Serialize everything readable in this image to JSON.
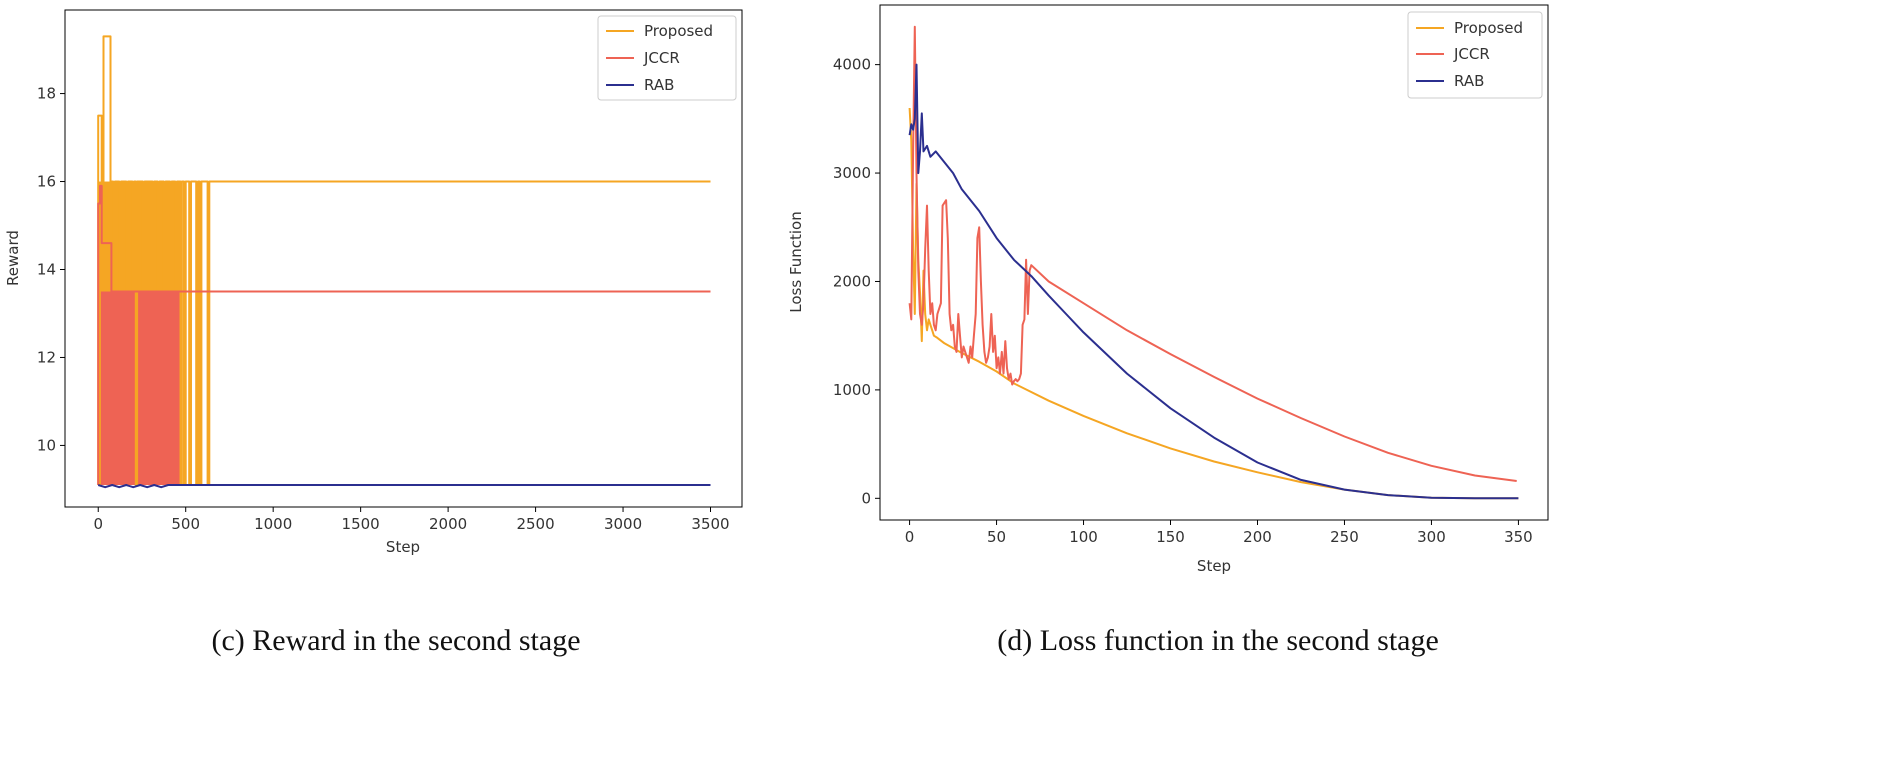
{
  "colors": {
    "proposed": "#f5a623",
    "jccr": "#ee6354",
    "rab": "#2b2f8f"
  },
  "chart_data": [
    {
      "type": "line",
      "xlabel": "Step",
      "ylabel": "Reward",
      "caption": "(c) Reward in the second stage",
      "xlim": [
        -190,
        3680
      ],
      "ylim": [
        8.6,
        19.9
      ],
      "xticks": [
        0,
        500,
        1000,
        1500,
        2000,
        2500,
        3000,
        3500
      ],
      "xtick_labels": [
        "0",
        "500",
        "1000",
        "1500",
        "2000",
        "2500",
        "3000",
        "3500"
      ],
      "yticks": [
        10,
        12,
        14,
        16,
        18
      ],
      "ytick_labels": [
        "10",
        "12",
        "14",
        "16",
        "18"
      ],
      "legend": [
        "Proposed",
        "JCCR",
        "RAB"
      ],
      "legend_position": "top-right",
      "series": [
        {
          "name": "Proposed",
          "color_key": "proposed",
          "points": [
            [
              0,
              9.1
            ],
            [
              0,
              17.5
            ],
            [
              20,
              17.5
            ],
            [
              20,
              15.9
            ],
            [
              30,
              15.9
            ],
            [
              30,
              19.3
            ],
            [
              70,
              19.3
            ],
            [
              70,
              16.0
            ],
            [
              85,
              16.0
            ],
            [
              85,
              13.5
            ],
            [
              95,
              13.5
            ],
            [
              95,
              16.0
            ],
            [
              120,
              16.0
            ],
            [
              120,
              13.5
            ],
            [
              130,
              13.5
            ],
            [
              130,
              16.0
            ],
            [
              160,
              16.0
            ],
            [
              160,
              13.5
            ],
            [
              170,
              13.5
            ],
            [
              170,
              16.0
            ],
            [
              195,
              16.0
            ],
            [
              195,
              13.5
            ],
            [
              205,
              13.5
            ],
            [
              205,
              16.0
            ],
            [
              215,
              16.0
            ],
            [
              215,
              9.1
            ],
            [
              222,
              9.1
            ],
            [
              222,
              16.0
            ],
            [
              255,
              16.0
            ],
            [
              255,
              13.5
            ],
            [
              265,
              13.5
            ],
            [
              265,
              16.0
            ],
            [
              310,
              16.0
            ],
            [
              310,
              13.5
            ],
            [
              320,
              13.5
            ],
            [
              320,
              16.0
            ],
            [
              340,
              16.0
            ],
            [
              340,
              13.5
            ],
            [
              350,
              13.5
            ],
            [
              350,
              16.0
            ],
            [
              375,
              16.0
            ],
            [
              375,
              13.5
            ],
            [
              385,
              13.5
            ],
            [
              385,
              16.0
            ],
            [
              410,
              16.0
            ],
            [
              410,
              13.5
            ],
            [
              420,
              13.5
            ],
            [
              420,
              16.0
            ],
            [
              440,
              16.0
            ],
            [
              440,
              13.5
            ],
            [
              450,
              13.5
            ],
            [
              450,
              16.0
            ],
            [
              470,
              16.0
            ],
            [
              470,
              9.1
            ],
            [
              478,
              9.1
            ],
            [
              478,
              16.0
            ],
            [
              490,
              16.0
            ],
            [
              490,
              9.1
            ],
            [
              500,
              9.1
            ],
            [
              500,
              16.0
            ],
            [
              520,
              16.0
            ],
            [
              520,
              9.1
            ],
            [
              530,
              9.1
            ],
            [
              530,
              16.0
            ],
            [
              560,
              16.0
            ],
            [
              560,
              9.1
            ],
            [
              570,
              9.1
            ],
            [
              570,
              16.0
            ],
            [
              580,
              16.0
            ],
            [
              580,
              9.1
            ],
            [
              590,
              9.1
            ],
            [
              590,
              16.0
            ],
            [
              625,
              16.0
            ],
            [
              625,
              9.1
            ],
            [
              635,
              9.1
            ],
            [
              635,
              16.0
            ],
            [
              3500,
              16.0
            ]
          ]
        },
        {
          "name": "JCCR",
          "color_key": "jccr",
          "points": [
            [
              0,
              9.1
            ],
            [
              0,
              15.5
            ],
            [
              10,
              15.5
            ],
            [
              10,
              15.9
            ],
            [
              20,
              15.9
            ],
            [
              20,
              14.6
            ],
            [
              75,
              14.6
            ],
            [
              75,
              13.5
            ],
            [
              480,
              13.5
            ],
            [
              3500,
              13.5
            ]
          ]
        },
        {
          "name": "RAB",
          "color_key": "rab",
          "points": [
            [
              0,
              9.1
            ],
            [
              40,
              9.05
            ],
            [
              80,
              9.1
            ],
            [
              120,
              9.05
            ],
            [
              160,
              9.1
            ],
            [
              200,
              9.05
            ],
            [
              240,
              9.1
            ],
            [
              280,
              9.05
            ],
            [
              320,
              9.1
            ],
            [
              360,
              9.05
            ],
            [
              400,
              9.1
            ],
            [
              440,
              9.1
            ],
            [
              3500,
              9.1
            ]
          ]
        }
      ],
      "fills": [
        {
          "name": "Proposed",
          "color_key": "proposed",
          "x": [
            0,
            480
          ],
          "y": [
            9.1,
            16.0
          ]
        },
        {
          "name": "JCCR",
          "color_key": "jccr",
          "x": [
            15,
            470
          ],
          "y": [
            9.1,
            13.5
          ]
        }
      ]
    },
    {
      "type": "line",
      "xlabel": "Step",
      "ylabel": "Loss Function",
      "caption": "(d) Loss function in the second stage",
      "xlim": [
        -17,
        367
      ],
      "ylim": [
        -200,
        4550
      ],
      "xticks": [
        0,
        50,
        100,
        150,
        200,
        250,
        300,
        350
      ],
      "xtick_labels": [
        "0",
        "50",
        "100",
        "150",
        "200",
        "250",
        "300",
        "350"
      ],
      "yticks": [
        0,
        1000,
        2000,
        3000,
        4000
      ],
      "ytick_labels": [
        "0",
        "1000",
        "2000",
        "3000",
        "4000"
      ],
      "legend": [
        "Proposed",
        "JCCR",
        "RAB"
      ],
      "legend_position": "top-right",
      "series": [
        {
          "name": "Proposed",
          "color_key": "proposed",
          "points": [
            [
              0,
              3600
            ],
            [
              1,
              3300
            ],
            [
              2,
              2300
            ],
            [
              3,
              1700
            ],
            [
              4,
              2900
            ],
            [
              5,
              2200
            ],
            [
              6,
              1900
            ],
            [
              7,
              1450
            ],
            [
              8,
              2100
            ],
            [
              9,
              1700
            ],
            [
              10,
              1550
            ],
            [
              11,
              1650
            ],
            [
              12,
              1600
            ],
            [
              13,
              1550
            ],
            [
              14,
              1500
            ],
            [
              16,
              1480
            ],
            [
              20,
              1430
            ],
            [
              30,
              1340
            ],
            [
              40,
              1260
            ],
            [
              50,
              1170
            ],
            [
              60,
              1060
            ],
            [
              80,
              900
            ],
            [
              100,
              760
            ],
            [
              125,
              600
            ],
            [
              150,
              460
            ],
            [
              175,
              340
            ],
            [
              200,
              240
            ],
            [
              225,
              150
            ],
            [
              250,
              80
            ],
            [
              275,
              30
            ],
            [
              300,
              5
            ],
            [
              325,
              0
            ],
            [
              350,
              0
            ]
          ]
        },
        {
          "name": "JCCR",
          "color_key": "jccr",
          "points": [
            [
              0,
              1800
            ],
            [
              1,
              1650
            ],
            [
              2,
              3200
            ],
            [
              3,
              4350
            ],
            [
              4,
              3000
            ],
            [
              5,
              2100
            ],
            [
              6,
              1700
            ],
            [
              7,
              1600
            ],
            [
              8,
              1800
            ],
            [
              9,
              2300
            ],
            [
              10,
              2700
            ],
            [
              11,
              2100
            ],
            [
              12,
              1700
            ],
            [
              13,
              1800
            ],
            [
              14,
              1600
            ],
            [
              15,
              1550
            ],
            [
              16,
              1700
            ],
            [
              18,
              1800
            ],
            [
              19,
              2700
            ],
            [
              21,
              2750
            ],
            [
              22,
              2400
            ],
            [
              23,
              1700
            ],
            [
              24,
              1550
            ],
            [
              25,
              1600
            ],
            [
              26,
              1400
            ],
            [
              27,
              1350
            ],
            [
              28,
              1700
            ],
            [
              29,
              1500
            ],
            [
              30,
              1300
            ],
            [
              31,
              1400
            ],
            [
              32,
              1350
            ],
            [
              34,
              1250
            ],
            [
              35,
              1400
            ],
            [
              36,
              1300
            ],
            [
              37,
              1500
            ],
            [
              38,
              1700
            ],
            [
              39,
              2400
            ],
            [
              40,
              2500
            ],
            [
              41,
              2000
            ],
            [
              42,
              1600
            ],
            [
              43,
              1350
            ],
            [
              44,
              1250
            ],
            [
              45,
              1300
            ],
            [
              46,
              1400
            ],
            [
              47,
              1700
            ],
            [
              48,
              1350
            ],
            [
              49,
              1500
            ],
            [
              50,
              1200
            ],
            [
              51,
              1300
            ],
            [
              52,
              1150
            ],
            [
              53,
              1350
            ],
            [
              54,
              1150
            ],
            [
              55,
              1450
            ],
            [
              56,
              1200
            ],
            [
              57,
              1100
            ],
            [
              58,
              1150
            ],
            [
              59,
              1050
            ],
            [
              60,
              1080
            ],
            [
              61,
              1100
            ],
            [
              62,
              1080
            ],
            [
              63,
              1100
            ],
            [
              64,
              1150
            ],
            [
              65,
              1600
            ],
            [
              66,
              1650
            ],
            [
              67,
              2200
            ],
            [
              68,
              1700
            ],
            [
              69,
              2100
            ],
            [
              70,
              2150
            ],
            [
              80,
              2000
            ],
            [
              100,
              1800
            ],
            [
              125,
              1550
            ],
            [
              150,
              1330
            ],
            [
              175,
              1120
            ],
            [
              200,
              920
            ],
            [
              225,
              740
            ],
            [
              250,
              570
            ],
            [
              275,
              420
            ],
            [
              300,
              300
            ],
            [
              325,
              210
            ],
            [
              349,
              160
            ]
          ]
        },
        {
          "name": "RAB",
          "color_key": "rab",
          "points": [
            [
              0,
              3350
            ],
            [
              1,
              3450
            ],
            [
              2,
              3400
            ],
            [
              3,
              3500
            ],
            [
              4,
              4000
            ],
            [
              5,
              3000
            ],
            [
              6,
              3200
            ],
            [
              7,
              3550
            ],
            [
              8,
              3200
            ],
            [
              10,
              3250
            ],
            [
              12,
              3150
            ],
            [
              15,
              3200
            ],
            [
              20,
              3100
            ],
            [
              25,
              3000
            ],
            [
              30,
              2850
            ],
            [
              40,
              2650
            ],
            [
              50,
              2400
            ],
            [
              60,
              2200
            ],
            [
              70,
              2050
            ],
            [
              80,
              1870
            ],
            [
              90,
              1700
            ],
            [
              100,
              1530
            ],
            [
              125,
              1150
            ],
            [
              150,
              830
            ],
            [
              175,
              560
            ],
            [
              200,
              330
            ],
            [
              225,
              170
            ],
            [
              250,
              80
            ],
            [
              275,
              30
            ],
            [
              300,
              5
            ],
            [
              325,
              0
            ],
            [
              350,
              0
            ]
          ]
        }
      ]
    }
  ]
}
